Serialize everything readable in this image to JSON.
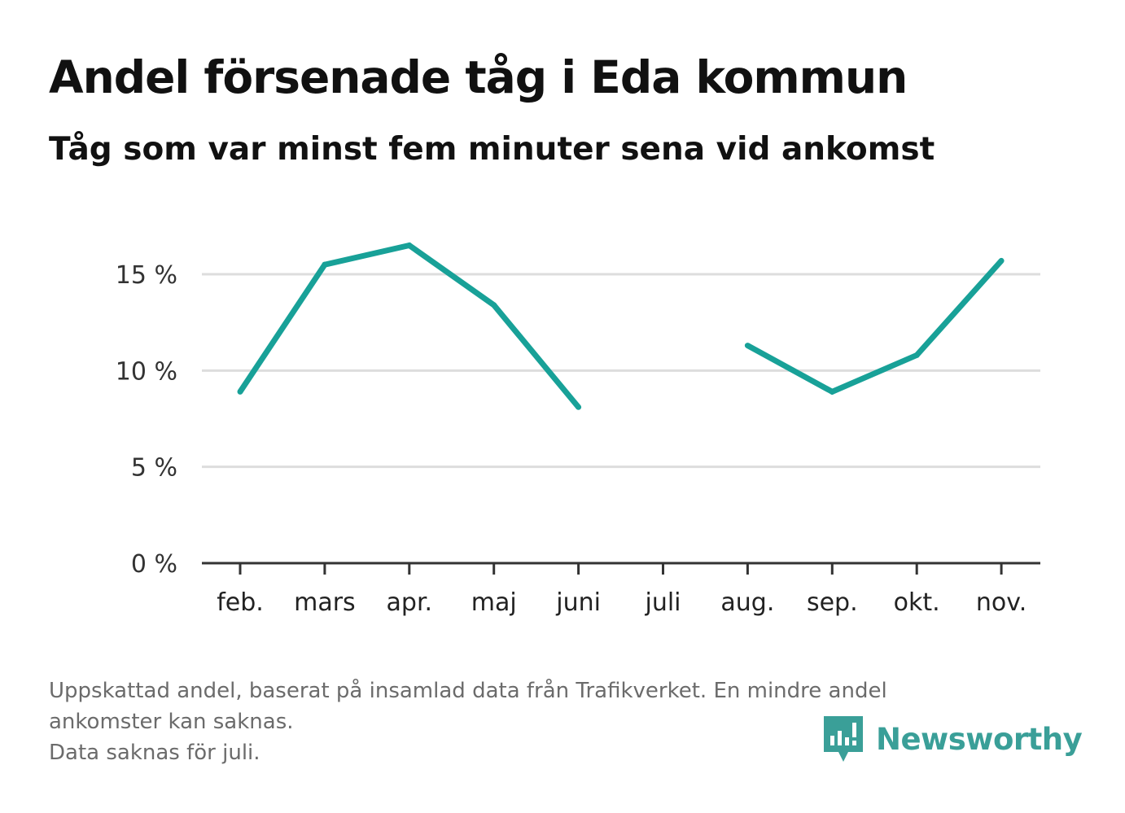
{
  "header": {
    "title": "Andel försenade tåg i Eda kommun",
    "subtitle": "Tåg som var minst fem minuter sena vid ankomst"
  },
  "footnote": {
    "line1": "Uppskattad andel, baserat på insamlad data från Trafikverket. En mindre andel",
    "line2": "ankomster kan saknas.",
    "line3": "Data saknas för juli."
  },
  "brand": {
    "name": "Newsworthy",
    "color": "#3a9f98",
    "icon": "newsworthy-logo-icon"
  },
  "colors": {
    "line": "#18a198",
    "grid": "#dddddd",
    "axis": "#333333"
  },
  "chart_data": {
    "type": "line",
    "title": "Andel försenade tåg i Eda kommun",
    "subtitle": "Tåg som var minst fem minuter sena vid ankomst",
    "xlabel": "",
    "ylabel": "",
    "categories": [
      "feb.",
      "mars",
      "apr.",
      "maj",
      "juni",
      "juli",
      "aug.",
      "sep.",
      "okt.",
      "nov."
    ],
    "series": [
      {
        "values": [
          8.9,
          15.5,
          16.5,
          13.4,
          8.1,
          null,
          11.3,
          8.9,
          10.8,
          15.7
        ]
      }
    ],
    "ylim": [
      0,
      17
    ],
    "yticks": [
      0,
      5,
      10,
      15
    ],
    "ytick_labels": [
      "0 %",
      "5 %",
      "10 %",
      "15 %"
    ],
    "grid": true,
    "legend": "none"
  }
}
